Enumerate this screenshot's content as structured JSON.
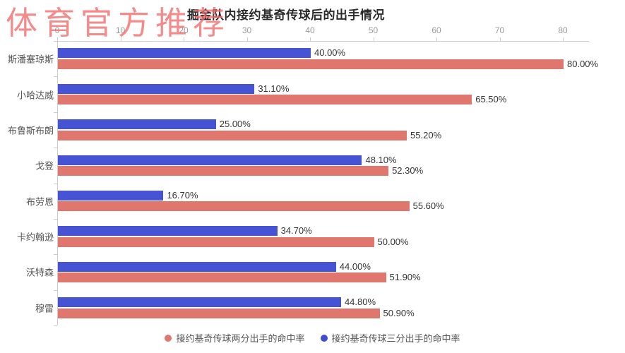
{
  "watermark": {
    "text": "体育官方推荐",
    "color": "rgba(240,106,106,0.78)"
  },
  "chart_data": {
    "type": "bar",
    "orientation": "horizontal",
    "title": "掘金队内接约基奇传球后的出手情况",
    "categories": [
      "斯潘塞琼斯",
      "小哈达威",
      "布鲁斯布朗",
      "戈登",
      "布劳恩",
      "卡约翰逊",
      "沃特森",
      "穆雷"
    ],
    "series": [
      {
        "name": "接约基奇传球三分出手的命中率",
        "color": "#4653d2",
        "values": [
          40.0,
          31.1,
          25.0,
          48.1,
          16.7,
          34.7,
          44.0,
          44.8
        ],
        "labels": [
          "40.00%",
          "31.10%",
          "25.00%",
          "48.10%",
          "16.70%",
          "34.70%",
          "44.00%",
          "44.80%"
        ]
      },
      {
        "name": "接约基奇传球两分出手的命中率",
        "color": "#e0776e",
        "values": [
          80.0,
          65.5,
          55.2,
          52.3,
          55.6,
          50.0,
          51.9,
          50.9
        ],
        "labels": [
          "80.00%",
          "65.50%",
          "55.20%",
          "52.30%",
          "55.60%",
          "50.00%",
          "51.90%",
          "50.90%"
        ]
      }
    ],
    "xlim": [
      0,
      80
    ],
    "x_ticks": [
      "0",
      "10",
      "20",
      "30",
      "40",
      "50",
      "60",
      "70",
      "80"
    ],
    "axis_position": "top",
    "grid": false,
    "legend_position": "bottom",
    "legend": [
      {
        "label": "接约基奇传球两分出手的命中率",
        "color": "#e0776e"
      },
      {
        "label": "接约基奇传球三分出手的命中率",
        "color": "#3f4ed0"
      }
    ],
    "axis_color": "#cccccc",
    "tick_label_color": "#999999",
    "category_label_color": "#555555",
    "value_label_color": "#333333"
  }
}
